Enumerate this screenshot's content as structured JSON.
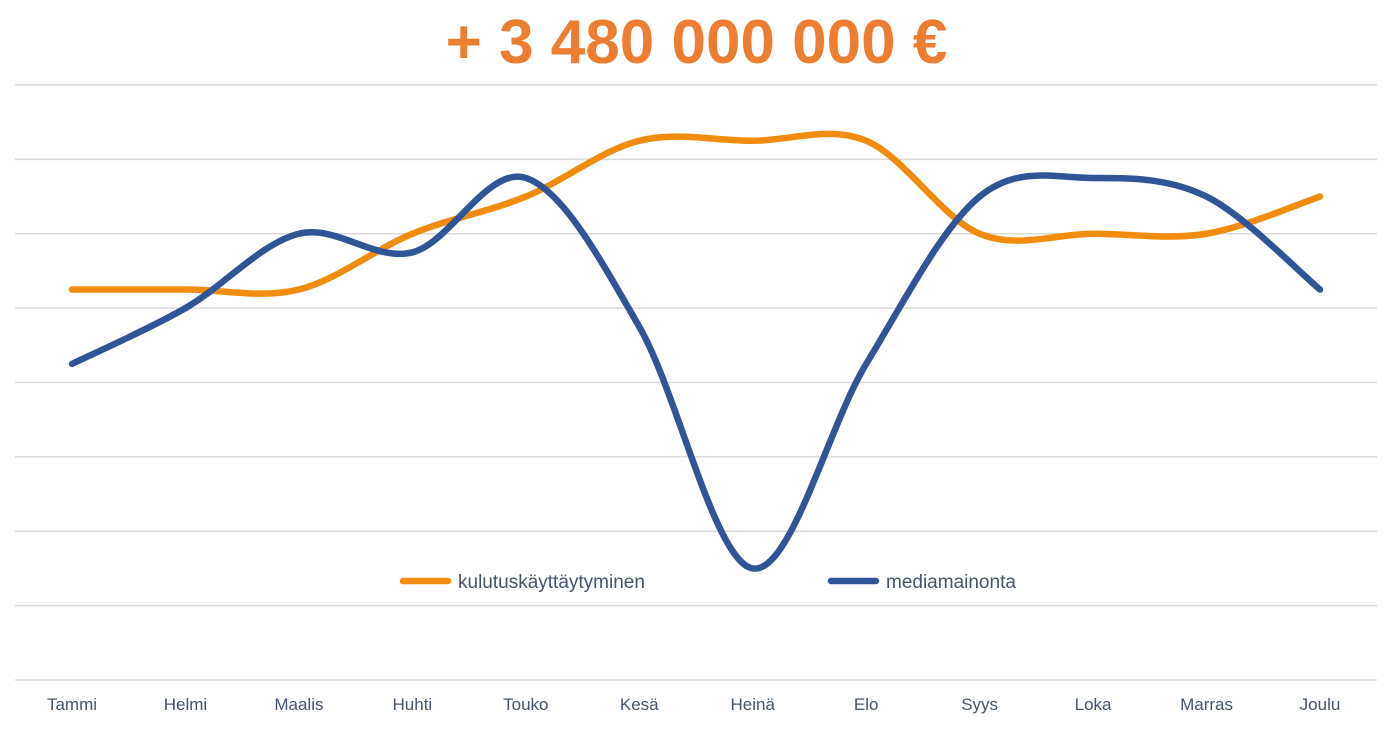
{
  "chart_data": {
    "type": "line",
    "title": "+ 3 480 000 000 €",
    "categories": [
      "Tammi",
      "Helmi",
      "Maalis",
      "Huhti",
      "Touko",
      "Kesä",
      "Heinä",
      "Elo",
      "Syys",
      "Loka",
      "Marras",
      "Joulu"
    ],
    "series": [
      {
        "name": "kulutuskäyttäytyminen",
        "color": "#F28C0F",
        "values": [
          5.25,
          5.25,
          5.25,
          6.0,
          6.5,
          7.25,
          7.25,
          7.25,
          6.0,
          6.0,
          6.0,
          6.5
        ]
      },
      {
        "name": "mediamainonta",
        "color": "#2F5597",
        "values": [
          4.25,
          5.0,
          6.0,
          5.75,
          6.75,
          4.75,
          1.5,
          4.25,
          6.5,
          6.75,
          6.5,
          5.25
        ]
      }
    ],
    "ylim": [
      0,
      8
    ],
    "grid": true,
    "legend": "inside-bottom"
  }
}
